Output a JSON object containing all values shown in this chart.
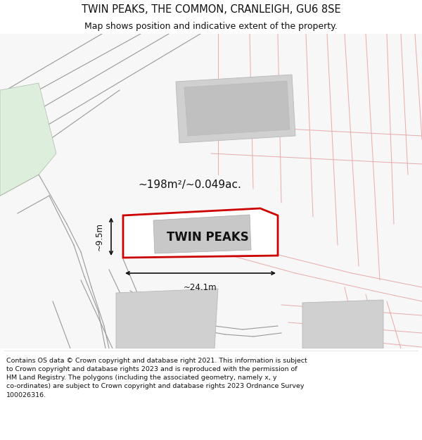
{
  "title_line1": "TWIN PEAKS, THE COMMON, CRANLEIGH, GU6 8SE",
  "title_line2": "Map shows position and indicative extent of the property.",
  "property_label": "TWIN PEAKS",
  "area_label": "~198m²/~0.049ac.",
  "dim_width": "~24.1m",
  "dim_height": "~9.5m",
  "footer_lines": [
    "Contains OS data © Crown copyright and database right 2021. This information is subject",
    "to Crown copyright and database rights 2023 and is reproduced with the permission of",
    "HM Land Registry. The polygons (including the associated geometry, namely x, y",
    "co-ordinates) are subject to Crown copyright and database rights 2023 Ordnance Survey",
    "100026316."
  ],
  "bg_color": "#ffffff",
  "map_bg": "#f7f7f7",
  "red_border_color": "#cc0000",
  "gray_line_color": "#999999",
  "pink_line_color": "#e8aaaa",
  "building_fill": "#d0d0d0",
  "building_edge": "#b8b8b8",
  "green_fill": "#ddeedd",
  "green_edge": "#aabbaa",
  "title_fontsize": 10.5,
  "subtitle_fontsize": 9,
  "label_fontsize": 12,
  "area_fontsize": 11,
  "dim_fontsize": 8.5,
  "footer_fontsize": 6.8
}
